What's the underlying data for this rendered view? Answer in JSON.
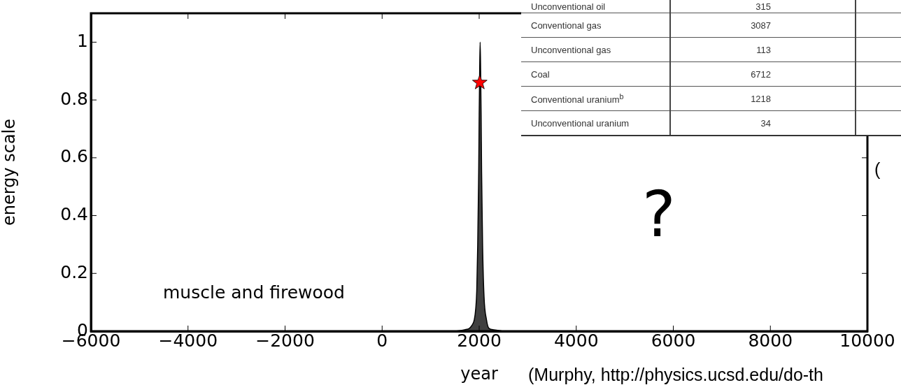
{
  "chart_data": [
    {
      "type": "area",
      "xlabel": "year",
      "ylabel": "energy scale",
      "x": [
        1500,
        1700,
        1800,
        1850,
        1900,
        1930,
        1950,
        1970,
        1990,
        2000,
        2010,
        2020,
        2030,
        2040,
        2050,
        2070,
        2100,
        2150,
        2200,
        2300,
        2500
      ],
      "series": [
        {
          "color": "#404040",
          "values": [
            0,
            0.005,
            0.01,
            0.02,
            0.04,
            0.08,
            0.14,
            0.3,
            0.55,
            0.75,
            0.9,
            1.0,
            0.9,
            0.75,
            0.55,
            0.3,
            0.12,
            0.04,
            0.01,
            0.005,
            0
          ]
        },
        {
          "type": "scatter",
          "color": "#ff0000",
          "marker": "star",
          "x": [
            2012
          ],
          "values": [
            0.86
          ]
        }
      ],
      "xlim": [
        -6000,
        10000
      ],
      "xticks": [
        -6000,
        -4000,
        -2000,
        0,
        2000,
        4000,
        6000,
        8000,
        10000
      ],
      "ylim": [
        0,
        1.1
      ],
      "yticks": [
        0,
        0.2,
        0.4,
        0.6,
        0.8,
        1.0
      ],
      "grid": false,
      "legend": false,
      "annotations": [
        "muscle and firewood",
        "?",
        "(",
        "(Murphy, http://physics.ucsd.edu/do-th"
      ]
    },
    {
      "type": "other",
      "categories": [
        "Unconventional oil",
        "Conventional gas",
        "Unconventional gas",
        "Coal",
        "Conventional uranium$^{b}$",
        "Unconventional uranium"
      ],
      "values": [
        315,
        3087,
        113,
        6712,
        1218,
        34
      ],
      "data_labels": true
    }
  ]
}
